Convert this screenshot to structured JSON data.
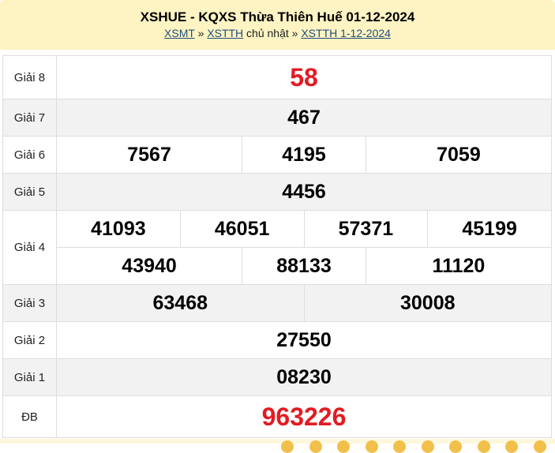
{
  "header": {
    "title": "XSHUE - KQXS Thừa Thiên Huế 01-12-2024",
    "crumb": {
      "link1": "XSMT",
      "sep1": "»",
      "link2": "XSTTH",
      "day": "chủ nhật",
      "sep2": "»",
      "link3": "XSTTH 1-12-2024"
    }
  },
  "prizes": {
    "g8": {
      "label": "Giải 8",
      "values": [
        "58"
      ]
    },
    "g7": {
      "label": "Giải 7",
      "values": [
        "467"
      ]
    },
    "g6": {
      "label": "Giải 6",
      "values": [
        "7567",
        "4195",
        "7059"
      ]
    },
    "g5": {
      "label": "Giải 5",
      "values": [
        "4456"
      ]
    },
    "g4": {
      "label": "Giải 4",
      "values": [
        "41093",
        "46051",
        "57371",
        "45199",
        "43940",
        "88133",
        "11120"
      ]
    },
    "g3": {
      "label": "Giải 3",
      "values": [
        "63468",
        "30008"
      ]
    },
    "g2": {
      "label": "Giải 2",
      "values": [
        "27550"
      ]
    },
    "g1": {
      "label": "Giải 1",
      "values": [
        "08230"
      ]
    },
    "db": {
      "label": "ĐB",
      "values": [
        "963226"
      ]
    }
  },
  "colors": {
    "header_bg": "#fdf3c3",
    "highlight": "#e31b23"
  }
}
